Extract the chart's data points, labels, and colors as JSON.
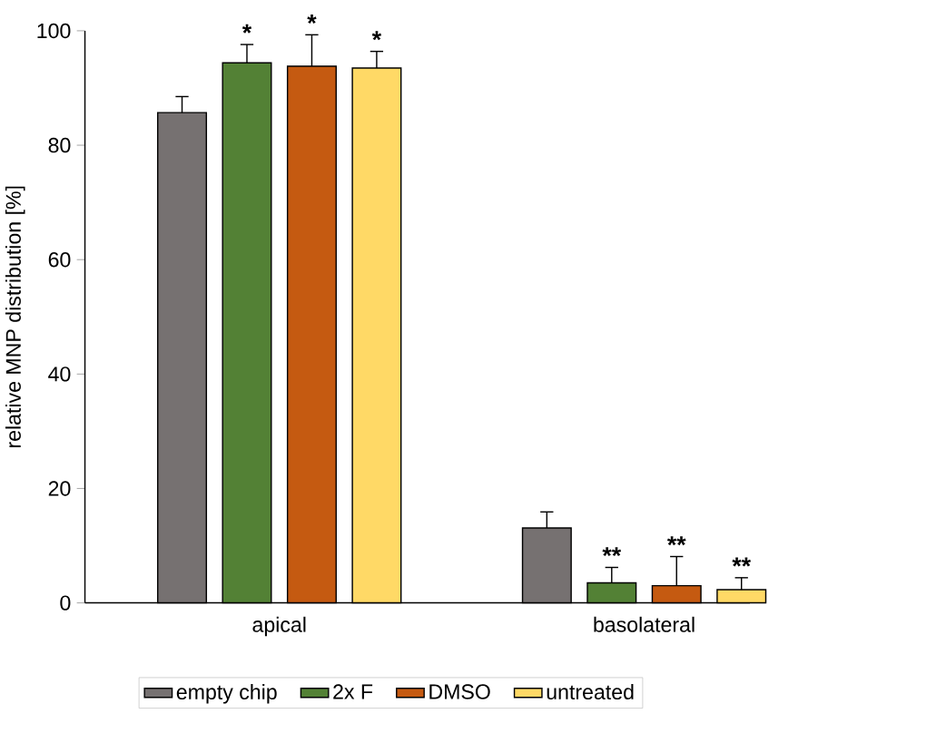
{
  "chart_data": {
    "type": "bar",
    "ylabel": "relative MNP distribution [%]",
    "categories": [
      "apical",
      "basolateral"
    ],
    "series": [
      {
        "name": "empty chip",
        "color": "#767171",
        "values": [
          85.7,
          13.1
        ],
        "errors": [
          2.8,
          2.8
        ]
      },
      {
        "name": "2x F",
        "color": "#538135",
        "values": [
          94.4,
          3.5
        ],
        "errors": [
          3.2,
          2.7
        ]
      },
      {
        "name": "DMSO",
        "color": "#c55a11",
        "values": [
          93.8,
          3.0
        ],
        "errors": [
          5.5,
          5.1
        ]
      },
      {
        "name": "untreated",
        "color": "#ffd966",
        "values": [
          93.5,
          2.3
        ],
        "errors": [
          2.9,
          2.1
        ]
      }
    ],
    "annotations": [
      "*",
      "*",
      "*",
      "**",
      "**",
      "**"
    ],
    "ylim": [
      0,
      100
    ],
    "yticks": [
      0,
      20,
      40,
      60,
      80,
      100
    ],
    "legend": "bottom"
  }
}
